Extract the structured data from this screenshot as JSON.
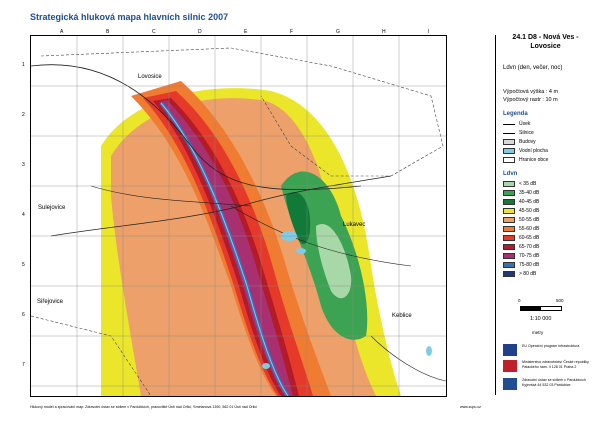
{
  "title": "Strategická hluková mapa hlavních silnic 2007",
  "panel": {
    "title": "24.1  D8 - Nová Ves - Lovosice",
    "ldvn_label": "Ldvn (den, večer, noc)",
    "height_label": "Výpočtová výška :  4 m",
    "raster_label": "Výpočtový rastr  :  10 m"
  },
  "grid": {
    "columns": [
      "A",
      "B",
      "C",
      "D",
      "E",
      "F",
      "G",
      "H",
      "I"
    ],
    "rows": [
      "1",
      "2",
      "3",
      "4",
      "5",
      "6",
      "7"
    ]
  },
  "towns": [
    "Lovosice",
    "Sulejovice",
    "Lukavec",
    "Siřejovice",
    "Keblice"
  ],
  "legend": {
    "title": "Legenda",
    "items": [
      {
        "label": "Úsek",
        "kind": "line"
      },
      {
        "label": "Silnice",
        "kind": "thick"
      },
      {
        "label": "Budovy",
        "kind": "box",
        "color": "#d8d8d8"
      },
      {
        "label": "Vodní plocha",
        "kind": "box",
        "color": "#7ecde6"
      },
      {
        "label": "Hranice obce",
        "kind": "box",
        "color": "#ffffff"
      }
    ]
  },
  "ldvn": {
    "title": "Ldvn",
    "classes": [
      {
        "label": "< 35 dB",
        "color": "#a8d8a8"
      },
      {
        "label": "35-40 dB",
        "color": "#3ca352"
      },
      {
        "label": "40-45 dB",
        "color": "#117a38"
      },
      {
        "label": "45-50 dB",
        "color": "#ebe62a"
      },
      {
        "label": "50-55 dB",
        "color": "#eda06a"
      },
      {
        "label": "55-60 dB",
        "color": "#f07c32"
      },
      {
        "label": "60-65 dB",
        "color": "#e53a2a"
      },
      {
        "label": "65-70 dB",
        "color": "#b31a2a"
      },
      {
        "label": "70-75 dB",
        "color": "#a83070"
      },
      {
        "label": "75-80 dB",
        "color": "#3a6fb3"
      },
      {
        "label": "> 80 dB",
        "color": "#1e3a78"
      }
    ]
  },
  "scale": {
    "ratio": "1:10 000",
    "start": "0",
    "end": "500",
    "unit": "metry"
  },
  "logos": [
    {
      "name": "eu-flag",
      "text": "EU Operační program Infrastruktura",
      "color": "#1f3f8f"
    },
    {
      "name": "ministry",
      "text": "Ministerstvo zdravotnictví České republiky Palackého nám. 4 128 01 Praha 2",
      "color": "#c0202a"
    },
    {
      "name": "zu",
      "text": "Zdravotní ústav se sídlem v Pardubicích Kyjevská 44 532 03 Pardubice",
      "color": "#1f4f8f"
    }
  ],
  "footer": "Hlukový model a zpracování map: Zdravotní ústav se sídlem v Pardubicích, pracoviště Ústí nad Orlicí, Smetanova 1390, 562 01 Ústí nad Orlicí",
  "footer_url": "www.zupu.cz"
}
